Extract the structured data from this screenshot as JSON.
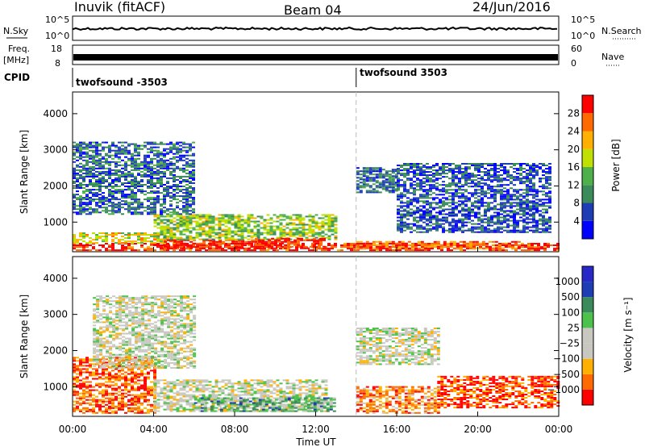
{
  "header": {
    "station": "Inuvik (fitACF)",
    "beam": "Beam 04",
    "date": "24/Jun/2016"
  },
  "panels": {
    "nsky": {
      "label": "N.Sky",
      "ticks": [
        "10^5",
        "10^0"
      ]
    },
    "nsearch": {
      "label": "N.Search",
      "ticks": [
        "10^5",
        "10^0"
      ]
    },
    "freq": {
      "label_top": "Freq.",
      "label_bottom": "[MHz]",
      "ticks": [
        "18",
        "8"
      ]
    },
    "nave": {
      "label": "Nave",
      "ticks": [
        "60",
        "0"
      ]
    },
    "cpid": {
      "label": "CPID",
      "segments": [
        {
          "text": "twofsound -3503",
          "start_hour": 0
        },
        {
          "text": "twofsound 3503",
          "start_hour": 14.0
        }
      ]
    }
  },
  "colors": {
    "power": [
      "#0000ff",
      "#1e3cb4",
      "#3a8a5a",
      "#4db04a",
      "#bfe000",
      "#ffb000",
      "#ff6a00",
      "#ff0000"
    ],
    "velocity": [
      "#ff0000",
      "#ff6a00",
      "#ffb000",
      "#c8c8c0",
      "#c8c8c0",
      "#4cc24c",
      "#3a8a5a",
      "#1e3cb4",
      "#2828c8"
    ]
  },
  "chart_data": [
    {
      "type": "heatmap",
      "name": "power",
      "ylabel": "Slant Range [km]",
      "yticks": [
        1000,
        2000,
        3000,
        4000
      ],
      "ylim": [
        180,
        4600
      ],
      "xlim": [
        0,
        24
      ],
      "colorbar": {
        "label": "Power [dB]",
        "ticks": [
          "4",
          "8",
          "12",
          "16",
          "20",
          "24",
          "28"
        ]
      },
      "features": [
        {
          "x0": 0.0,
          "x1": 24.0,
          "r0": 200,
          "r1": 400,
          "level": 0.9
        },
        {
          "x0": 0.0,
          "x1": 5.0,
          "r0": 400,
          "r1": 700,
          "level": 0.6
        },
        {
          "x0": 4.5,
          "x1": 10.0,
          "r0": 250,
          "r1": 500,
          "level": 0.95
        },
        {
          "x0": 4.0,
          "x1": 13.0,
          "r0": 500,
          "r1": 1200,
          "level": 0.5
        },
        {
          "x0": 9.0,
          "x1": 12.5,
          "r0": 250,
          "r1": 550,
          "level": 0.95
        },
        {
          "x0": 14.0,
          "x1": 22.0,
          "r0": 250,
          "r1": 450,
          "level": 0.8
        },
        {
          "x0": 0.0,
          "x1": 6.0,
          "r0": 1200,
          "r1": 3200,
          "level": 0.25
        },
        {
          "x0": 14.0,
          "x1": 16.0,
          "r0": 1800,
          "r1": 2500,
          "level": 0.25
        },
        {
          "x0": 16.0,
          "x1": 23.5,
          "r0": 700,
          "r1": 2600,
          "level": 0.2
        }
      ]
    },
    {
      "type": "heatmap",
      "name": "velocity",
      "xlabel": "Time UT",
      "ylabel": "Slant Range [km]",
      "yticks": [
        1000,
        2000,
        3000,
        4000
      ],
      "ylim": [
        180,
        4600
      ],
      "xlim": [
        0,
        24
      ],
      "xticks": [
        "00:00",
        "04:00",
        "08:00",
        "12:00",
        "16:00",
        "20:00",
        "00:00"
      ],
      "colorbar": {
        "label": "Velocity [m s⁻¹]",
        "ticks": [
          "1000",
          "500",
          "100",
          "25",
          "−25",
          "−100",
          "−500",
          "−1000"
        ]
      },
      "features": [
        {
          "x0": 0.0,
          "x1": 4.0,
          "r0": 250,
          "r1": 1800,
          "level": 0.15
        },
        {
          "x0": 4.0,
          "x1": 12.5,
          "r0": 300,
          "r1": 1200,
          "level": 0.45
        },
        {
          "x0": 6.0,
          "x1": 13.0,
          "r0": 300,
          "r1": 700,
          "level": 0.65
        },
        {
          "x0": 14.0,
          "x1": 18.0,
          "r0": 250,
          "r1": 1000,
          "level": 0.2
        },
        {
          "x0": 18.0,
          "x1": 24.0,
          "r0": 400,
          "r1": 1300,
          "level": 0.12
        },
        {
          "x0": 1.0,
          "x1": 6.0,
          "r0": 1500,
          "r1": 3500,
          "level": 0.45
        },
        {
          "x0": 14.0,
          "x1": 18.0,
          "r0": 1600,
          "r1": 2600,
          "level": 0.45
        }
      ]
    }
  ]
}
